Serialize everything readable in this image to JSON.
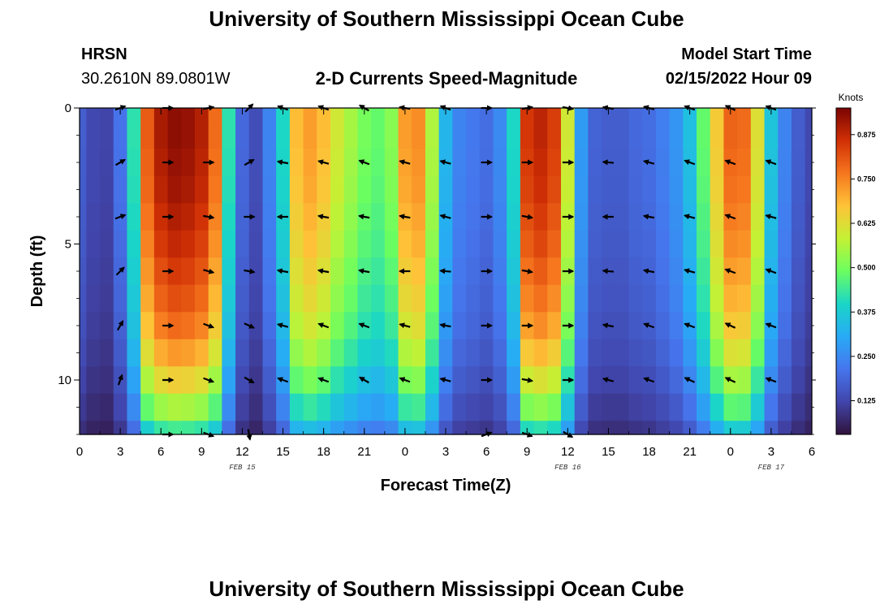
{
  "page": {
    "title_top": "University of Southern Mississippi Ocean Cube",
    "title_bottom": "University of Southern Mississippi Ocean Cube",
    "station": "HRSN",
    "coords": "30.2610N  89.0801W",
    "product": "2-D Currents Speed-Magnitude",
    "model_start_label": "Model Start Time",
    "model_start_value": "02/15/2022 Hour 09"
  },
  "chart_data": {
    "type": "heatmap",
    "title": "2-D Currents Speed-Magnitude",
    "xlabel": "Forecast Time(Z)",
    "ylabel": "Depth (ft)",
    "x_range_hours": [
      0,
      54
    ],
    "y_range_ft": [
      0,
      12
    ],
    "x_tick_hours": [
      0,
      3,
      6,
      9,
      12,
      15,
      18,
      21,
      24,
      27,
      30,
      33,
      36,
      39,
      42,
      45,
      48,
      51,
      54
    ],
    "x_tick_labels": [
      "0",
      "3",
      "6",
      "9",
      "12",
      "15",
      "18",
      "21",
      "0",
      "3",
      "6",
      "9",
      "12",
      "15",
      "18",
      "21",
      "0",
      "3",
      "6"
    ],
    "y_ticks": [
      0,
      5,
      10
    ],
    "y_tick_labels": [
      "0",
      "5",
      "10"
    ],
    "date_labels": [
      {
        "text": "FEB 15",
        "hour": 12
      },
      {
        "text": "FEB 16",
        "hour": 36
      },
      {
        "text": "FEB 17",
        "hour": 51
      }
    ],
    "colorbar": {
      "title": "Knots",
      "min": 0.03,
      "max": 0.95,
      "ticks": [
        0.125,
        0.25,
        0.375,
        0.5,
        0.625,
        0.75,
        0.875
      ],
      "tick_labels": [
        "0.125",
        "0.250",
        "0.375",
        "0.500",
        "0.625",
        "0.750",
        "0.875"
      ]
    },
    "time_profile_knots": [
      0.17,
      0.13,
      0.12,
      0.21,
      0.42,
      0.8,
      0.9,
      0.93,
      0.92,
      0.89,
      0.78,
      0.42,
      0.19,
      0.14,
      0.24,
      0.4,
      0.68,
      0.72,
      0.68,
      0.6,
      0.55,
      0.5,
      0.48,
      0.52,
      0.72,
      0.74,
      0.56,
      0.33,
      0.24,
      0.22,
      0.2,
      0.25,
      0.4,
      0.85,
      0.88,
      0.84,
      0.6,
      0.28,
      0.18,
      0.17,
      0.17,
      0.19,
      0.2,
      0.23,
      0.27,
      0.35,
      0.48,
      0.66,
      0.79,
      0.78,
      0.62,
      0.36,
      0.24,
      0.17,
      0.13
    ],
    "depth_factor": [
      1.0,
      1.0,
      0.99,
      0.98,
      0.96,
      0.94,
      0.91,
      0.88,
      0.84,
      0.78,
      0.7,
      0.6,
      0.48
    ],
    "arrows": {
      "depths_ft": [
        0,
        2,
        4,
        6,
        8,
        10,
        12
      ],
      "columns": [
        {
          "hour": 3,
          "angles_deg": [
            20,
            30,
            20,
            45,
            60,
            70,
            null
          ]
        },
        {
          "hour": 6.5,
          "angles_deg": [
            0,
            0,
            0,
            0,
            0,
            0,
            0
          ]
        },
        {
          "hour": 9.5,
          "angles_deg": [
            10,
            0,
            -10,
            -15,
            -20,
            -20,
            -20
          ]
        },
        {
          "hour": 12.5,
          "angles_deg": [
            45,
            30,
            0,
            -10,
            -25,
            -30,
            -80
          ]
        },
        {
          "hour": 15,
          "angles_deg": [
            160,
            170,
            180,
            170,
            165,
            160,
            null
          ]
        },
        {
          "hour": 18,
          "angles_deg": [
            160,
            165,
            170,
            170,
            160,
            160,
            null
          ]
        },
        {
          "hour": 21,
          "angles_deg": [
            150,
            160,
            170,
            170,
            160,
            150,
            null
          ]
        },
        {
          "hour": 24,
          "angles_deg": [
            170,
            165,
            170,
            180,
            165,
            160,
            null
          ]
        },
        {
          "hour": 27,
          "angles_deg": [
            160,
            165,
            165,
            175,
            170,
            165,
            null
          ]
        },
        {
          "hour": 30,
          "angles_deg": [
            0,
            0,
            0,
            0,
            0,
            0,
            20
          ]
        },
        {
          "hour": 33,
          "angles_deg": [
            10,
            0,
            -10,
            -10,
            0,
            -10,
            -20
          ]
        },
        {
          "hour": 36,
          "angles_deg": [
            -10,
            0,
            0,
            0,
            0,
            0,
            -30
          ]
        },
        {
          "hour": 39,
          "angles_deg": [
            170,
            175,
            180,
            175,
            170,
            165,
            null
          ]
        },
        {
          "hour": 42,
          "angles_deg": [
            165,
            165,
            170,
            170,
            160,
            160,
            null
          ]
        },
        {
          "hour": 45,
          "angles_deg": [
            160,
            160,
            165,
            165,
            160,
            155,
            null
          ]
        },
        {
          "hour": 48,
          "angles_deg": [
            155,
            160,
            160,
            160,
            155,
            155,
            null
          ]
        },
        {
          "hour": 51,
          "angles_deg": [
            160,
            160,
            165,
            160,
            160,
            160,
            null
          ]
        }
      ]
    }
  }
}
